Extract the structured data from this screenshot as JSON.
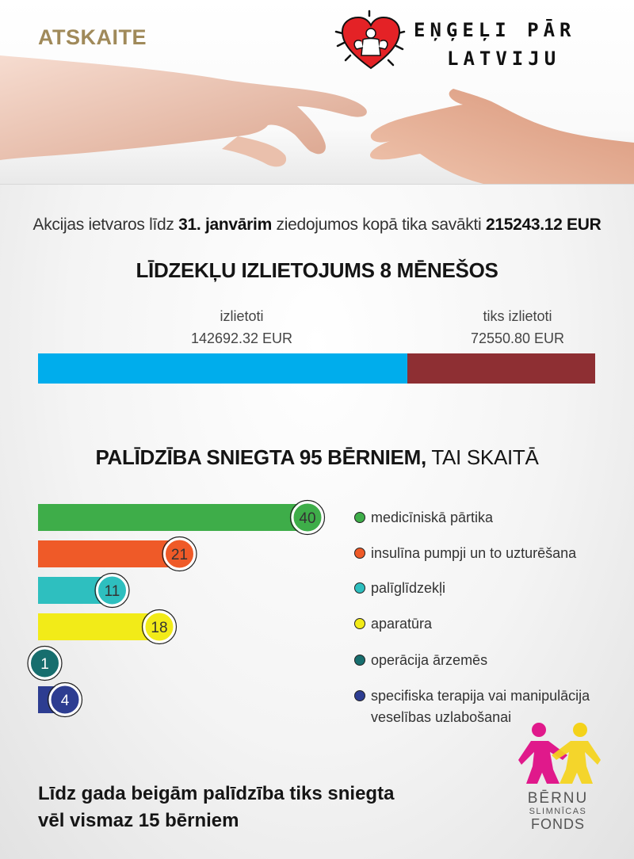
{
  "header": {
    "report_label": "ATSKAITE",
    "brand_line1": "EŅĢEĻI PĀR",
    "brand_line2": "LATVIJU"
  },
  "intro": {
    "prefix": "Akcijas ietvaros līdz ",
    "date": "31. janvārim",
    "middle": " ziedojumos kopā tika savākti ",
    "total": "215243.12 EUR"
  },
  "spending": {
    "title": "LĪDZEKĻU IZLIETOJUMS 8 MĒNEŠOS",
    "spent_label": "izlietoti",
    "spent_value": "142692.32 EUR",
    "remaining_label": "tiks izlietoti",
    "remaining_value": "72550.80 EUR"
  },
  "help": {
    "title_bold": "PALĪDZĪBA SNIEGTA 95 BĒRNIEM,",
    "title_light": " TAI SKAITĀ"
  },
  "footer": {
    "line1": "Līdz gada beigām palīdzība tiks sniegta",
    "line2": "vēl vismaz 15 bērniem"
  },
  "partner_logo": {
    "line1": "BĒRNU",
    "line2": "SLIMNĪCAS",
    "line3": "FONDS"
  },
  "colors": {
    "spent": "#00adec",
    "remaining": "#8e2f33",
    "green": "#3ead49",
    "orange": "#ef5a28",
    "teal": "#2ebfbf",
    "yellow": "#f2eb18",
    "darkteal": "#176e6e",
    "navy": "#2d3d91"
  },
  "chart_data": [
    {
      "type": "bar",
      "orientation": "horizontal",
      "stacked": true,
      "title": "LĪDZEKĻU IZLIETOJUMS 8 MĒNEŠOS",
      "categories": [
        "izlietoti",
        "tiks izlietoti"
      ],
      "values": [
        142692.32,
        72550.8
      ],
      "unit": "EUR",
      "colors": [
        "#00adec",
        "#8e2f33"
      ]
    },
    {
      "type": "bar",
      "orientation": "horizontal",
      "title": "PALĪDZĪBA SNIEGTA 95 BĒRNIEM, TAI SKAITĀ",
      "max_scale": 40,
      "categories": [
        "medicīniskā pārtika",
        "insulīna pumpji un to uzturēšana",
        "palīglīdzekļi",
        "aparatūra",
        "operācija ārzemēs",
        "specifiska terapija vai manipulācija veselības uzlabošanai"
      ],
      "values": [
        40,
        21,
        11,
        18,
        1,
        4
      ],
      "colors": [
        "#3ead49",
        "#ef5a28",
        "#2ebfbf",
        "#f2eb18",
        "#176e6e",
        "#2d3d91"
      ],
      "legend": "right"
    }
  ]
}
